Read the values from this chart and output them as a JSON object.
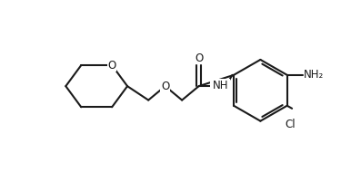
{
  "background_color": "#ffffff",
  "line_color": "#1a1a1a",
  "line_width": 1.5,
  "font_size": 8.5,
  "figsize": [
    3.86,
    1.9
  ],
  "dpi": 100,
  "xlim": [
    0,
    386
  ],
  "ylim": [
    0,
    190
  ]
}
